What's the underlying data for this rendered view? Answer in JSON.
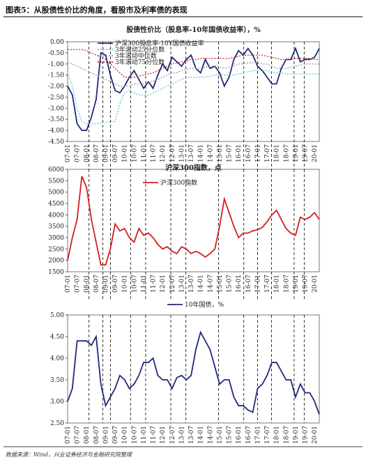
{
  "header": {
    "title": "图表5：从股债性价比的角度，看股市及利率债的表现"
  },
  "footer": {
    "source": "数据来源：Wind，兴业证券经济与金融研究院整理"
  },
  "chart_data": [
    {
      "type": "line",
      "title": "股债性价比（股息率-10年国债收益率），%",
      "categories": [
        "07-01",
        null,
        "07-07",
        null,
        "08-01",
        null,
        "08-07",
        null,
        "09-01",
        null,
        "09-07",
        null,
        "10-01",
        null,
        "10-07",
        null,
        "11-01",
        null,
        "11-07",
        null,
        "12-01",
        null,
        "12-07",
        null,
        "13-01",
        null,
        "13-07",
        null,
        "14-01",
        null,
        "14-07",
        null,
        "15-01",
        null,
        "15-07",
        null,
        "16-01",
        null,
        "16-07",
        null,
        "17-01",
        null,
        "17-07",
        null,
        "18-01",
        null,
        "18-07",
        null,
        "19-01",
        null,
        "19-07",
        null,
        "20-01",
        null
      ],
      "series": [
        {
          "name": "沪深300股息率-10Y国债收益率",
          "color": "#1f2a78",
          "style": "solid",
          "values": [
            -2.0,
            -2.4,
            -3.7,
            -4.0,
            -4.0,
            -3.4,
            -2.6,
            -0.5,
            -0.6,
            -1.5,
            -2.2,
            -2.3,
            -2.0,
            -1.6,
            -1.3,
            -1.7,
            -2.1,
            -1.8,
            -2.1,
            -1.5,
            -1.0,
            -1.3,
            -0.7,
            -0.9,
            -1.1,
            -0.8,
            -0.6,
            -1.2,
            -1.4,
            -0.8,
            -1.2,
            -1.1,
            -1.4,
            -2.0,
            -1.6,
            -0.8,
            -0.4,
            -0.6,
            -0.3,
            -0.6,
            -1.1,
            -1.3,
            -1.6,
            -1.9,
            -1.9,
            -1.2,
            -0.8,
            -0.8,
            -0.3,
            -0.9,
            -0.8,
            -0.8,
            -0.7,
            -0.3
          ]
        },
        {
          "name": "3年滚动25分位数",
          "color": "#5ec8e0",
          "style": "dotted",
          "values": [
            -1.4,
            -2.0,
            -3.0,
            -3.6,
            -3.7,
            -3.7,
            -3.7,
            -3.65,
            -3.65,
            -3.6,
            -3.6,
            -2.8,
            -2.3,
            -2.2,
            -2.3,
            -2.4,
            -2.4,
            -2.4,
            -2.3,
            -2.2,
            -2.1,
            -2.0,
            -1.9,
            -1.8,
            -1.7,
            -1.6,
            -1.6,
            -1.6,
            -1.6,
            -1.6,
            -1.55,
            -1.5,
            -1.5,
            -1.5,
            -1.5,
            -1.5,
            -1.45,
            -1.4,
            -1.35,
            -1.3,
            -1.3,
            -1.3,
            -1.3,
            -1.35,
            -1.4,
            -1.4,
            -1.45,
            -1.45,
            -1.45,
            -1.45,
            -1.45,
            -1.45,
            -1.45,
            -1.45
          ]
        },
        {
          "name": "3年滚动中位数",
          "color": "#999999",
          "style": "dotted",
          "values": [
            -0.9,
            -1.0,
            -1.1,
            -1.2,
            -1.3,
            -1.4,
            -1.5,
            -1.6,
            -1.7,
            -1.8,
            -1.9,
            -2.0,
            -2.0,
            -2.0,
            -1.9,
            -1.9,
            -1.9,
            -1.8,
            -1.8,
            -1.7,
            -1.6,
            -1.5,
            -1.4,
            -1.4,
            -1.3,
            -1.25,
            -1.2,
            -1.2,
            -1.2,
            -1.15,
            -1.1,
            -1.1,
            -1.15,
            -1.2,
            -1.15,
            -1.1,
            -1.0,
            -1.0,
            -0.95,
            -0.95,
            -0.95,
            -1.0,
            -1.0,
            -1.1,
            -1.2,
            -1.2,
            -1.2,
            -1.15,
            -1.1,
            -1.05,
            -1.0,
            -1.0,
            -1.0,
            -1.0
          ]
        },
        {
          "name": "3年滚动75分位数",
          "color": "#c0282d",
          "style": "dotted",
          "values": [
            -0.35,
            -0.35,
            -0.35,
            -0.35,
            -0.4,
            -0.5,
            -0.6,
            -0.7,
            -0.8,
            -1.0,
            -1.2,
            -1.4,
            -1.6,
            -1.6,
            -1.6,
            -1.55,
            -1.5,
            -1.45,
            -1.4,
            -1.3,
            -1.2,
            -1.1,
            -1.0,
            -0.95,
            -0.9,
            -0.85,
            -0.8,
            -0.8,
            -0.75,
            -0.75,
            -0.75,
            -0.75,
            -0.75,
            -0.75,
            -0.75,
            -0.7,
            -0.65,
            -0.6,
            -0.6,
            -0.6,
            -0.6,
            -0.6,
            -0.65,
            -0.7,
            -0.75,
            -0.8,
            -0.8,
            -0.8,
            -0.75,
            -0.75,
            -0.75,
            -0.75,
            -0.8,
            -0.8
          ]
        }
      ],
      "ylim": [
        -4.5,
        0
      ],
      "yticks": [
        {
          "value": -4.5,
          "label": "-4.50"
        },
        {
          "value": -4,
          "label": "-4.00"
        },
        {
          "value": -3.5,
          "label": "-3.50"
        },
        {
          "value": -3,
          "label": "-3.00"
        },
        {
          "value": -2.5,
          "label": "-2.50"
        },
        {
          "value": -2,
          "label": "-2.00"
        },
        {
          "value": -1.5,
          "label": "-1.50"
        },
        {
          "value": -1,
          "label": "-1.00"
        },
        {
          "value": -0.5,
          "label": "-0.50"
        },
        {
          "value": 0,
          "label": "0.00"
        }
      ]
    },
    {
      "type": "line",
      "title": "沪深300指数，点",
      "categories": [
        "07-01",
        null,
        "07-07",
        null,
        "08-01",
        null,
        "08-07",
        null,
        "09-01",
        null,
        "09-07",
        null,
        "10-01",
        null,
        "10-07",
        null,
        "11-01",
        null,
        "11-07",
        null,
        "12-01",
        null,
        "12-07",
        null,
        "13-01",
        null,
        "13-07",
        null,
        "14-01",
        null,
        "14-07",
        null,
        "15-01",
        null,
        "15-07",
        null,
        "16-01",
        null,
        "16-07",
        null,
        "17-01",
        null,
        "17-07",
        null,
        "18-01",
        null,
        "18-07",
        null,
        "19-01",
        null,
        "19-07",
        null,
        "20-01",
        null
      ],
      "series": [
        {
          "name": "沪深300指数",
          "color": "#d11f1f",
          "style": "solid",
          "values": [
            2000,
            3000,
            3800,
            5700,
            5200,
            3800,
            2800,
            1800,
            1800,
            2500,
            3600,
            3300,
            3400,
            3000,
            2800,
            3400,
            3100,
            3200,
            3000,
            2700,
            2500,
            2600,
            2400,
            2300,
            2600,
            2500,
            2300,
            2400,
            2300,
            2150,
            2300,
            2500,
            3500,
            4700,
            4100,
            3500,
            3000,
            3200,
            3200,
            3300,
            3350,
            3450,
            3700,
            4000,
            4200,
            3800,
            3400,
            3200,
            3100,
            3900,
            3800,
            3900,
            4100,
            3800
          ]
        }
      ],
      "ylim": [
        1500,
        6000
      ],
      "yticks": [
        1500,
        2000,
        2500,
        3000,
        3500,
        4000,
        4500,
        5000,
        5500,
        6000
      ]
    },
    {
      "type": "line",
      "categories": [
        "07-01",
        null,
        "07-07",
        null,
        "08-01",
        null,
        "08-07",
        null,
        "09-01",
        null,
        "09-07",
        null,
        "10-01",
        null,
        "10-07",
        null,
        "11-01",
        null,
        "11-07",
        null,
        "12-01",
        null,
        "12-07",
        null,
        "13-01",
        null,
        "13-07",
        null,
        "14-01",
        null,
        "14-07",
        null,
        "15-01",
        null,
        "15-07",
        null,
        "16-01",
        null,
        "16-07",
        null,
        "17-01",
        null,
        "17-07",
        null,
        "18-01",
        null,
        "18-07",
        null,
        "19-01",
        null,
        "19-07",
        null,
        "20-01",
        null
      ],
      "series": [
        {
          "name": "10年国债，%",
          "color": "#1f2a78",
          "style": "solid",
          "values": [
            3.0,
            3.3,
            4.4,
            4.4,
            4.4,
            4.3,
            4.5,
            3.4,
            2.9,
            3.1,
            3.3,
            3.6,
            3.5,
            3.3,
            3.4,
            3.6,
            3.9,
            3.9,
            4.0,
            3.6,
            3.5,
            3.5,
            3.3,
            3.55,
            3.6,
            3.5,
            3.6,
            4.2,
            4.6,
            4.4,
            4.2,
            3.8,
            3.4,
            3.5,
            3.5,
            3.1,
            2.9,
            2.9,
            2.8,
            2.75,
            3.3,
            3.4,
            3.6,
            3.9,
            3.9,
            3.7,
            3.5,
            3.5,
            3.1,
            3.4,
            3.2,
            3.2,
            3.0,
            2.7
          ]
        }
      ],
      "ylim": [
        2.5,
        5.0
      ],
      "yticks": [
        {
          "value": 2.5,
          "label": "2.50"
        },
        {
          "value": 3,
          "label": "3.00"
        },
        {
          "value": 3.5,
          "label": "3.50"
        },
        {
          "value": 4,
          "label": "4.00"
        },
        {
          "value": 4.5,
          "label": "4.50"
        },
        {
          "value": 5,
          "label": "5.00"
        }
      ]
    }
  ]
}
